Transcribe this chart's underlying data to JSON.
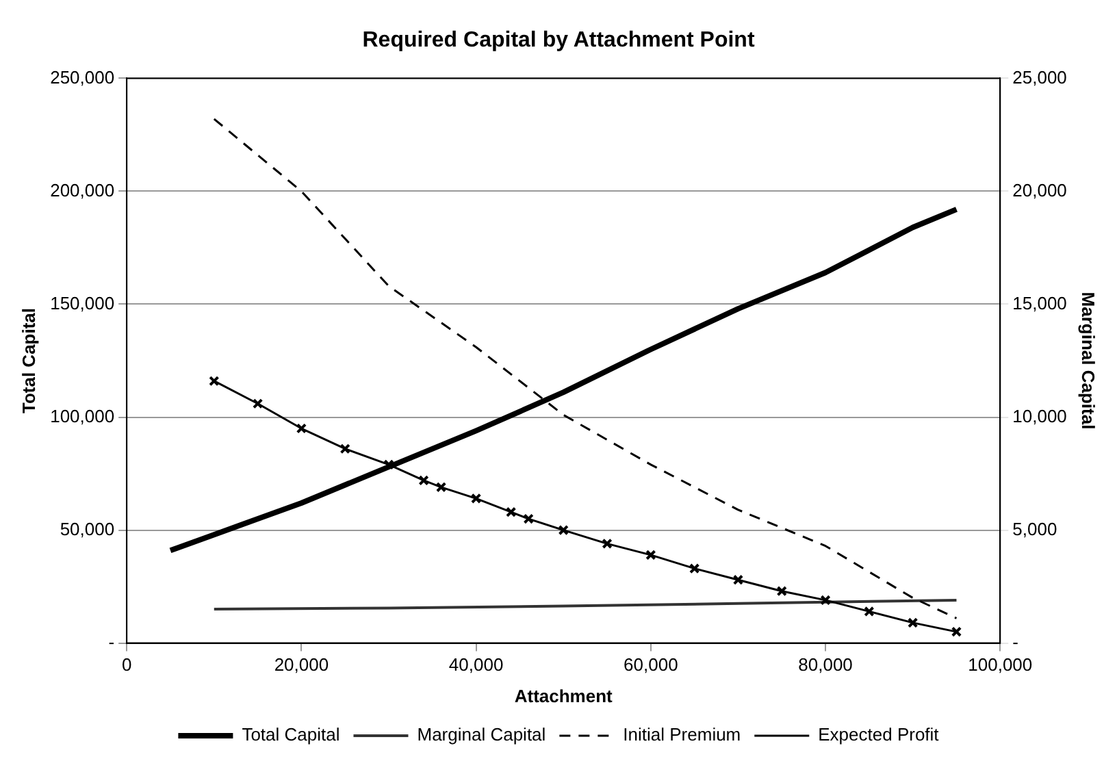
{
  "chart_data": {
    "type": "line",
    "title": "Required Capital by Attachment Point",
    "xlabel": "Attachment",
    "ylabel": "Total Capital",
    "y2label": "Marginal Capital",
    "xlim": [
      0,
      100000
    ],
    "xticks": [
      0,
      {
        "value": 20000,
        "label": "20,000"
      },
      {
        "value": 40000,
        "label": "40,000"
      },
      {
        "value": 60000,
        "label": "60,000"
      },
      {
        "value": 80000,
        "label": "80,000"
      },
      {
        "value": 100000,
        "label": "100,000"
      }
    ],
    "ylim": [
      0,
      250000
    ],
    "yticks": [
      {
        "value": 0,
        "label": "-"
      },
      {
        "value": 50000,
        "label": "50,000"
      },
      {
        "value": 100000,
        "label": "100,000"
      },
      {
        "value": 150000,
        "label": "150,000"
      },
      {
        "value": 200000,
        "label": "200,000"
      },
      {
        "value": 250000,
        "label": "250,000"
      }
    ],
    "y2lim": [
      0,
      25000
    ],
    "y2ticks": [
      {
        "value": 0,
        "label": "-"
      },
      {
        "value": 5000,
        "label": "5,000"
      },
      {
        "value": 10000,
        "label": "10,000"
      },
      {
        "value": 15000,
        "label": "15,000"
      },
      {
        "value": 20000,
        "label": "20,000"
      },
      {
        "value": 25000,
        "label": "25,000"
      }
    ],
    "grid": "y",
    "legend": "bottom",
    "series": [
      {
        "name": "Total Capital",
        "color": "#000000",
        "marker": "none",
        "line_style": "solid",
        "x": [
          5000,
          10000,
          20000,
          30000,
          40000,
          50000,
          60000,
          70000,
          80000,
          90000,
          95000
        ],
        "values": [
          41000,
          48000,
          62000,
          78000,
          94000,
          111000,
          130000,
          148000,
          164000,
          184000,
          192000
        ]
      },
      {
        "name": "Marginal Capital",
        "color": "#333333",
        "marker": "none",
        "line_style": "solid",
        "axis": "y2",
        "x": [
          10000,
          30000,
          50000,
          70000,
          95000
        ],
        "values": [
          1500,
          1550,
          1640,
          1750,
          1900
        ]
      },
      {
        "name": "Initial Premium",
        "color": "#000000",
        "marker": "none",
        "line_style": "dashed",
        "x": [
          10000,
          20000,
          30000,
          40000,
          50000,
          60000,
          70000,
          80000,
          90000,
          95000
        ],
        "values": [
          232000,
          200000,
          158000,
          131000,
          101000,
          79000,
          59000,
          43000,
          20000,
          11000
        ]
      },
      {
        "name": "Expected Profit",
        "color": "#000000",
        "marker": "cross",
        "line_style": "solid",
        "x": [
          10000,
          15000,
          20000,
          25000,
          30000,
          34000,
          36000,
          40000,
          44000,
          46000,
          50000,
          55000,
          60000,
          65000,
          70000,
          75000,
          80000,
          85000,
          90000,
          95000
        ],
        "values": [
          116000,
          106000,
          95000,
          86000,
          79000,
          72000,
          69000,
          64000,
          58000,
          55000,
          50000,
          44000,
          39000,
          33000,
          28000,
          23000,
          19000,
          14000,
          9000,
          5000
        ]
      }
    ]
  }
}
